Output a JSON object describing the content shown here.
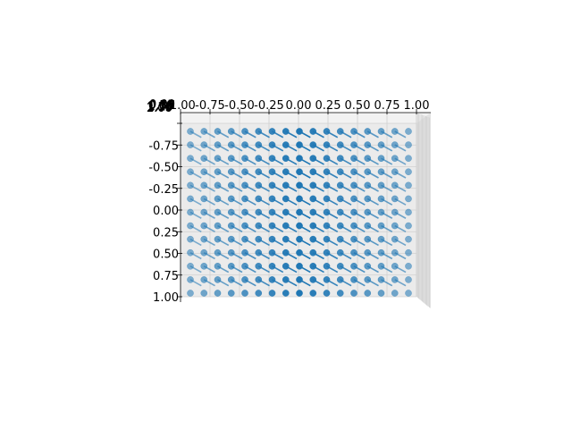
{
  "chart_data": {
    "type": "scatter",
    "subtype": "3d-scatter-with-quiver",
    "view": "top-down",
    "series_color": "#1f77b4",
    "pane_color": "#ebebeb",
    "grid": true,
    "x": {
      "range": [
        -1.0,
        1.0
      ],
      "ticks": [
        "-1.00",
        "-0.75",
        "-0.50",
        "-0.25",
        "0.00",
        "0.25",
        "0.50",
        "0.75",
        "1.00"
      ]
    },
    "y": {
      "range": [
        -1.0,
        1.0
      ],
      "ticks": [
        "-1.00",
        "-0.75",
        "-0.50",
        "-0.25",
        "0.00",
        "0.25",
        "0.50",
        "0.75",
        "1.00"
      ]
    },
    "z": {
      "ticks": [
        "0.00",
        "0.25",
        "0.50",
        "0.75",
        "1.00",
        "1.25",
        "1.50",
        "1.75",
        "2.00"
      ]
    },
    "points": {
      "grid_x": 17,
      "grid_y": 13,
      "x_range": [
        -1.0,
        1.0
      ],
      "y_range": [
        -1.0,
        1.0
      ]
    },
    "vector_field": {
      "description": "unit-length arrows anchored at each grid point, pointing toward +x/+y"
    }
  }
}
